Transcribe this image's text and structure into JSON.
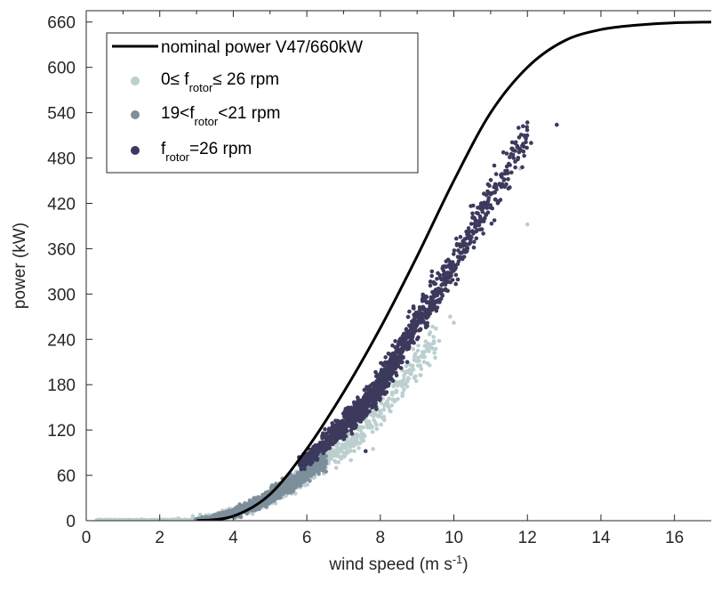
{
  "chart_data": {
    "type": "scatter",
    "title": "",
    "xlabel": {
      "main": "wind speed (m s",
      "sup": "-1",
      "end": ")"
    },
    "ylabel": "power (kW)",
    "xlim": [
      0,
      17
    ],
    "ylim": [
      0,
      675
    ],
    "xticks": [
      0,
      2,
      4,
      6,
      8,
      10,
      12,
      14,
      16
    ],
    "yticks": [
      0,
      60,
      120,
      180,
      240,
      300,
      360,
      420,
      480,
      540,
      600,
      660
    ],
    "grid": false,
    "legend_position": "top-left",
    "legend": [
      {
        "key": "nominal",
        "pre": "nominal power V47/660kW",
        "sub": "",
        "post": ""
      },
      {
        "key": "all",
        "pre": "0≤ f",
        "sub": "rotor",
        "post": "≤ 26 rpm"
      },
      {
        "key": "mid",
        "pre": "19<f",
        "sub": "rotor",
        "post": "<21 rpm"
      },
      {
        "key": "max",
        "pre": "f",
        "sub": "rotor",
        "post": "=26 rpm"
      }
    ],
    "colors": {
      "nominal": "#000000",
      "all": "#bccfcf",
      "mid": "#7d8f9b",
      "max": "#3c3a5c",
      "axis": "#262626"
    },
    "series": [
      {
        "key": "nominal",
        "kind": "line",
        "points": [
          [
            3,
            0
          ],
          [
            4,
            6
          ],
          [
            5,
            35
          ],
          [
            6,
            95
          ],
          [
            7,
            170
          ],
          [
            8,
            255
          ],
          [
            9,
            350
          ],
          [
            10,
            450
          ],
          [
            11,
            540
          ],
          [
            12,
            600
          ],
          [
            13,
            635
          ],
          [
            14,
            650
          ],
          [
            15,
            656
          ],
          [
            16,
            659
          ],
          [
            17,
            660
          ]
        ]
      },
      {
        "key": "all",
        "kind": "scatter-band",
        "trend": [
          [
            0.3,
            0
          ],
          [
            2,
            0
          ],
          [
            2.8,
            0
          ],
          [
            3.2,
            2
          ],
          [
            3.6,
            6
          ],
          [
            4,
            10
          ],
          [
            4.5,
            18
          ],
          [
            5,
            30
          ],
          [
            5.5,
            45
          ],
          [
            6,
            62
          ],
          [
            6.5,
            80
          ],
          [
            7,
            100
          ],
          [
            7.5,
            120
          ],
          [
            8,
            145
          ],
          [
            8.5,
            175
          ],
          [
            9,
            205
          ],
          [
            9.5,
            240
          ]
        ],
        "spread": [
          1,
          1,
          1,
          3,
          5,
          6,
          8,
          9,
          10,
          11,
          12,
          14,
          16,
          18,
          20,
          22,
          22
        ],
        "density": [
          6,
          6,
          6,
          5,
          5,
          5,
          4,
          4,
          4,
          3,
          3,
          3,
          2,
          2,
          2,
          2,
          2
        ],
        "extra_points": [
          [
            9.9,
            270
          ],
          [
            10,
            262
          ],
          [
            11.8,
            466
          ],
          [
            12,
            392
          ],
          [
            9.6,
            238
          ],
          [
            8.9,
            200
          ],
          [
            8.6,
            165
          ],
          [
            7.8,
            95
          ],
          [
            7.2,
            80
          ],
          [
            6.8,
            70
          ],
          [
            2.5,
            3
          ],
          [
            2.9,
            6
          ],
          [
            3.1,
            8
          ]
        ]
      },
      {
        "key": "mid",
        "kind": "scatter-band",
        "trend": [
          [
            3,
            0
          ],
          [
            3.5,
            4
          ],
          [
            4,
            10
          ],
          [
            4.5,
            20
          ],
          [
            5,
            32
          ],
          [
            5.5,
            47
          ],
          [
            6,
            62
          ],
          [
            6.5,
            78
          ]
        ],
        "spread": [
          2,
          4,
          6,
          7,
          8,
          9,
          9,
          10
        ],
        "density": [
          6,
          6,
          7,
          7,
          7,
          7,
          6,
          5
        ],
        "extra_points": []
      },
      {
        "key": "max",
        "kind": "scatter-band",
        "trend": [
          [
            5.8,
            75
          ],
          [
            6.2,
            88
          ],
          [
            6.6,
            108
          ],
          [
            7,
            128
          ],
          [
            7.4,
            145
          ],
          [
            7.8,
            165
          ],
          [
            8.2,
            195
          ],
          [
            8.6,
            230
          ],
          [
            9,
            265
          ],
          [
            9.5,
            300
          ],
          [
            10,
            340
          ],
          [
            10.5,
            380
          ],
          [
            11,
            425
          ],
          [
            11.5,
            470
          ],
          [
            12,
            510
          ]
        ],
        "spread": [
          8,
          10,
          12,
          14,
          16,
          18,
          20,
          20,
          20,
          20,
          22,
          22,
          24,
          26,
          26
        ],
        "density": [
          5,
          6,
          7,
          8,
          8,
          8,
          7,
          6,
          5,
          4,
          3,
          3,
          2,
          2,
          2
        ],
        "extra_points": [
          [
            12.8,
            524
          ],
          [
            12,
            527
          ],
          [
            11.4,
            463
          ],
          [
            11.1,
            470
          ],
          [
            11.3,
            455
          ],
          [
            7.6,
            92
          ],
          [
            9.4,
            324
          ],
          [
            10.8,
            380
          ],
          [
            12.1,
            500
          ],
          [
            11.9,
            495
          ]
        ]
      }
    ]
  }
}
